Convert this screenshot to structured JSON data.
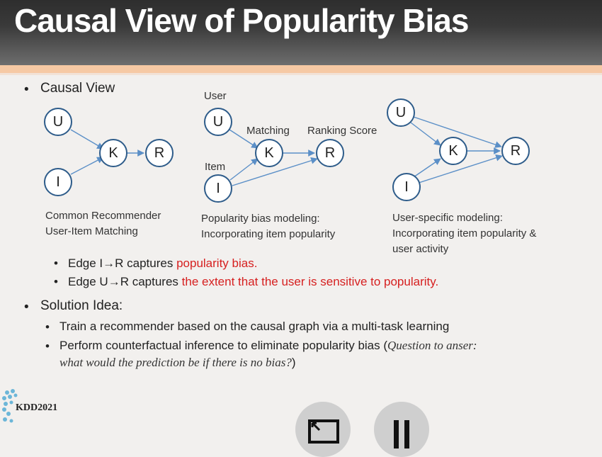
{
  "slide": {
    "title": "Causal View of Popularity Bias",
    "bullet1": "Causal View",
    "graphs": [
      {
        "node_u": "U",
        "node_i": "I",
        "node_k": "K",
        "node_r": "R",
        "caption1": "Common Recommender",
        "caption2": "User-Item Matching"
      },
      {
        "node_u": "U",
        "node_i": "I",
        "node_k": "K",
        "node_r": "R",
        "label_user": "User",
        "label_item": "Item",
        "label_matching": "Matching",
        "label_ranking": "Ranking Score",
        "caption1": "Popularity bias modeling:",
        "caption2": "Incorporating item popularity"
      },
      {
        "node_u": "U",
        "node_i": "I",
        "node_k": "K",
        "node_r": "R",
        "caption1": "User-specific modeling:",
        "caption2": "Incorporating item popularity &",
        "caption3": "user activity"
      }
    ],
    "sub1_prefix": "Edge I→R captures ",
    "sub1_highlight": "popularity bias.",
    "sub2_prefix": "Edge U→R captures ",
    "sub2_highlight": "the extent that the user is sensitive to popularity.",
    "bullet2": "Solution Idea:",
    "sol1": "Train a recommender based on the causal graph via a multi-task learning",
    "sol2_prefix": "Perform counterfactual inference to eliminate popularity bias (",
    "sol2_italic1": "Question to anser:",
    "sol2_italic2": "what would the prediction be if there is no bias?",
    "sol2_close": ")",
    "logo_text": "KDD2021",
    "bullet_glyph": "•"
  },
  "controls": [
    {
      "icon": "exit-fullscreen-icon"
    },
    {
      "icon": "pause-icon"
    }
  ],
  "colors": {
    "accent_red": "#d62020",
    "node_stroke": "#2e5c8a",
    "edge": "#5b8fc7",
    "rule": "#f6c9a4"
  }
}
